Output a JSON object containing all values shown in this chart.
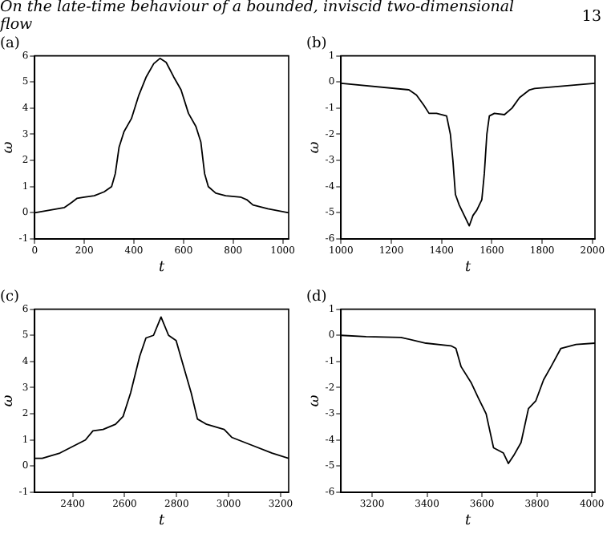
{
  "chart_data": [
    {
      "type": "line",
      "title": "(a)",
      "xlabel": "t",
      "ylabel": "ω",
      "annotations": [
        "On the late-time behaviour of a bounded, inviscid two-dimensional flow",
        "13"
      ],
      "xlim": [
        0,
        1024
      ],
      "xticks": [
        0,
        200,
        400,
        600,
        800,
        1000
      ],
      "ylim": [
        -1,
        6
      ],
      "yticks": [
        -1,
        0,
        1,
        2,
        3,
        4,
        5,
        6
      ],
      "grid": false,
      "legend": false,
      "marker": "none",
      "line_style": "solid",
      "series": [
        {
          "color": "#000000",
          "x": [
            0,
            60,
            120,
            150,
            170,
            200,
            240,
            280,
            310,
            325,
            340,
            360,
            390,
            420,
            450,
            480,
            505,
            530,
            560,
            590,
            620,
            650,
            670,
            685,
            700,
            730,
            770,
            830,
            855,
            880,
            940,
            1024
          ],
          "values": [
            0,
            0.1,
            0.2,
            0.4,
            0.55,
            0.6,
            0.65,
            0.8,
            1.0,
            1.5,
            2.5,
            3.1,
            3.6,
            4.5,
            5.2,
            5.7,
            5.9,
            5.75,
            5.2,
            4.7,
            3.8,
            3.3,
            2.7,
            1.5,
            1.0,
            0.75,
            0.65,
            0.6,
            0.5,
            0.3,
            0.15,
            0
          ]
        }
      ]
    },
    {
      "type": "line",
      "title": "(b)",
      "xlabel": "t",
      "ylabel": "ω",
      "xlim": [
        1000,
        2010
      ],
      "xticks": [
        1000,
        1200,
        1400,
        1600,
        1800,
        2000
      ],
      "ylim": [
        -6,
        1
      ],
      "yticks": [
        -6,
        -5,
        -4,
        -3,
        -2,
        -1,
        0,
        1
      ],
      "grid": false,
      "legend": false,
      "marker": "none",
      "line_style": "solid",
      "series": [
        {
          "color": "#000000",
          "x": [
            1000,
            1270,
            1300,
            1330,
            1350,
            1380,
            1420,
            1435,
            1445,
            1455,
            1470,
            1490,
            1510,
            1525,
            1540,
            1560,
            1570,
            1580,
            1590,
            1610,
            1650,
            1680,
            1710,
            1750,
            1770,
            2010
          ],
          "values": [
            -0.05,
            -0.3,
            -0.5,
            -0.9,
            -1.2,
            -1.2,
            -1.3,
            -2,
            -3,
            -4.3,
            -4.7,
            -5.1,
            -5.5,
            -5.1,
            -4.9,
            -4.5,
            -3.5,
            -2.0,
            -1.3,
            -1.2,
            -1.25,
            -1.0,
            -0.6,
            -0.3,
            -0.25,
            -0.05
          ]
        }
      ]
    },
    {
      "type": "line",
      "title": "(c)",
      "xlabel": "t",
      "ylabel": "ω",
      "xlim": [
        2254,
        3231
      ],
      "xticks": [
        2400,
        2600,
        2800,
        3000,
        3200
      ],
      "ylim": [
        -1,
        6
      ],
      "yticks": [
        -1,
        0,
        1,
        2,
        3,
        4,
        5,
        6
      ],
      "grid": false,
      "legend": false,
      "marker": "none",
      "line_style": "solid",
      "series": [
        {
          "color": "#000000",
          "x": [
            2254,
            2283,
            2351,
            2449,
            2478,
            2517,
            2565,
            2594,
            2623,
            2658,
            2682,
            2711,
            2740,
            2769,
            2798,
            2827,
            2856,
            2880,
            2915,
            2983,
            3012,
            3089,
            3167,
            3231
          ],
          "values": [
            0.3,
            0.3,
            0.5,
            1.0,
            1.35,
            1.4,
            1.6,
            1.9,
            2.8,
            4.2,
            4.9,
            5.0,
            5.7,
            5.0,
            4.8,
            3.8,
            2.8,
            1.8,
            1.6,
            1.4,
            1.1,
            0.8,
            0.5,
            0.3
          ]
        }
      ]
    },
    {
      "type": "line",
      "title": "(d)",
      "xlabel": "t",
      "ylabel": "ω",
      "xlim": [
        3087,
        4011
      ],
      "xticks": [
        3200,
        3400,
        3600,
        3800,
        4000
      ],
      "ylim": [
        -6,
        1
      ],
      "yticks": [
        -6,
        -5,
        -4,
        -3,
        -2,
        -1,
        0,
        1
      ],
      "grid": false,
      "legend": false,
      "marker": "none",
      "line_style": "solid",
      "series": [
        {
          "color": "#000000",
          "x": [
            3087,
            3178,
            3305,
            3396,
            3487,
            3505,
            3524,
            3560,
            3587,
            3615,
            3642,
            3678,
            3696,
            3715,
            3742,
            3769,
            3796,
            3824,
            3851,
            3887,
            3942,
            4011
          ],
          "values": [
            0,
            -0.05,
            -0.08,
            -0.3,
            -0.4,
            -0.5,
            -1.2,
            -1.8,
            -2.4,
            -3,
            -4.3,
            -4.5,
            -4.9,
            -4.6,
            -4.1,
            -2.8,
            -2.5,
            -1.7,
            -1.2,
            -0.5,
            -0.35,
            -0.3
          ]
        }
      ]
    }
  ]
}
